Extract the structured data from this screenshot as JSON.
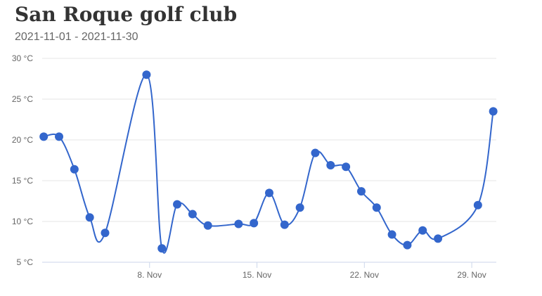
{
  "title": "San Roque golf club",
  "subtitle": "2021-11-01 - 2021-11-30",
  "chart_data": {
    "type": "line",
    "x_ticks": [
      {
        "day": 8,
        "label": "8. Nov"
      },
      {
        "day": 15,
        "label": "15. Nov"
      },
      {
        "day": 22,
        "label": "22. Nov"
      },
      {
        "day": 29,
        "label": "29. Nov"
      }
    ],
    "y_ticks": [
      {
        "value": 5,
        "label": "5 °C"
      },
      {
        "value": 10,
        "label": "10 °C"
      },
      {
        "value": 15,
        "label": "15 °C"
      },
      {
        "value": 20,
        "label": "20 °C"
      },
      {
        "value": 25,
        "label": "25 °C"
      },
      {
        "value": 30,
        "label": "30 °C"
      }
    ],
    "xlim": [
      1,
      30.6
    ],
    "ylim": [
      5,
      30
    ],
    "grid": true,
    "line_color": "#3366cc",
    "series": [
      {
        "x": [
          1.1,
          2.1,
          3.1,
          4.1,
          5.1,
          7.8,
          8.8,
          9.8,
          10.8,
          11.8,
          13.8,
          14.8,
          15.8,
          16.8,
          17.8,
          18.8,
          19.8,
          20.8,
          21.8,
          22.8,
          23.8,
          24.8,
          25.8,
          26.8,
          29.4,
          30.4
        ],
        "values": [
          20.4,
          20.4,
          16.4,
          10.5,
          8.6,
          28.0,
          6.7,
          12.1,
          10.9,
          9.5,
          9.7,
          9.8,
          13.5,
          9.6,
          11.7,
          18.4,
          16.9,
          16.7,
          13.7,
          11.7,
          8.4,
          7.1,
          8.9,
          7.9,
          12.0,
          23.5
        ]
      }
    ]
  }
}
